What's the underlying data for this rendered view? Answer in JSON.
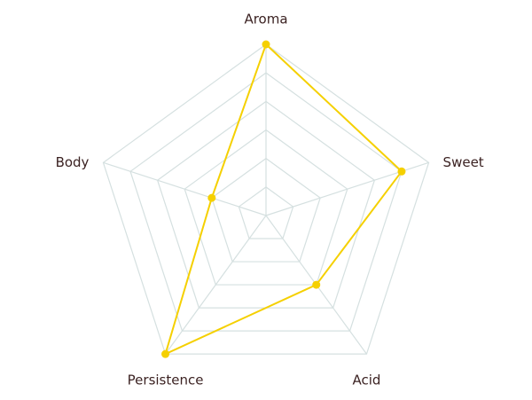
{
  "chart_data": {
    "type": "radar",
    "categories": [
      "Aroma",
      "Sweet",
      "Acid",
      "Persistence",
      "Body"
    ],
    "values": [
      6,
      5,
      3,
      6,
      2
    ],
    "color": "#f5d000",
    "grid_color": "#d5e0e0",
    "rlim": [
      0,
      6
    ],
    "rticks": [
      1,
      2,
      3,
      4,
      5,
      6
    ]
  }
}
